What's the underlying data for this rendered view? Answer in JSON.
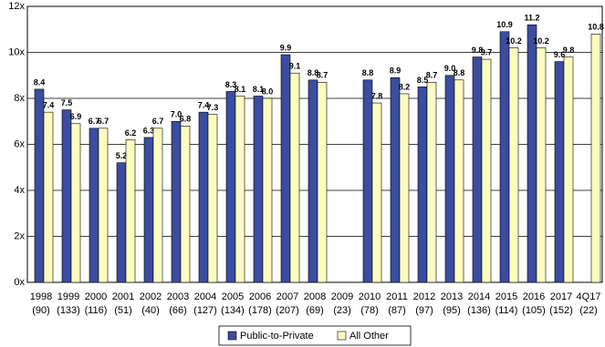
{
  "chart_data": {
    "type": "bar",
    "categories": [
      "1998",
      "1999",
      "2000",
      "2001",
      "2002",
      "2003",
      "2004",
      "2005",
      "2006",
      "2007",
      "2008",
      "2009",
      "2010",
      "2011",
      "2012",
      "2013",
      "2014",
      "2015",
      "2016",
      "2017",
      "4Q17"
    ],
    "category_counts": [
      "(90)",
      "(133)",
      "(116)",
      "(51)",
      "(40)",
      "(66)",
      "(127)",
      "(134)",
      "(178)",
      "(207)",
      "(69)",
      "(23)",
      "(78)",
      "(87)",
      "(97)",
      "(95)",
      "(136)",
      "(114)",
      "(105)",
      "(152)",
      "(22)"
    ],
    "series": [
      {
        "name": "Public-to-Private",
        "color": "#3a4d9f",
        "values": [
          8.4,
          7.5,
          6.7,
          5.2,
          6.3,
          7.0,
          7.4,
          8.3,
          8.1,
          9.9,
          8.8,
          null,
          8.8,
          8.9,
          8.5,
          9.0,
          9.8,
          10.9,
          11.2,
          9.6,
          null
        ],
        "value_labels": [
          "8.4",
          "7.5",
          "6.7",
          "5.2",
          "6.3",
          "7.0",
          "7.4",
          "8.3",
          "8.1",
          "9.9",
          "8.8",
          null,
          "8.8",
          "8.9",
          "8.5",
          "9.0",
          "9.8",
          "10.9",
          "11.2",
          "9.6",
          null
        ]
      },
      {
        "name": "All Other",
        "color": "#fdfdc0",
        "values": [
          7.4,
          6.9,
          6.7,
          6.2,
          6.7,
          6.8,
          7.3,
          8.1,
          8.0,
          9.1,
          8.7,
          null,
          7.8,
          8.2,
          8.7,
          8.8,
          9.7,
          10.2,
          10.2,
          9.8,
          10.8
        ],
        "value_labels": [
          "7.4",
          "6.9",
          "6.7",
          "6.2",
          "6.7",
          "6.8",
          "7.3",
          "8.1",
          "8.0",
          "9.1",
          "8.7",
          null,
          "7.8",
          "8.2",
          "8.7",
          "8.8",
          "9.7",
          "10.2",
          "10.2",
          "9.8",
          "10.8"
        ]
      }
    ],
    "ylim": [
      0,
      12
    ],
    "yticks": [
      {
        "value": 0,
        "label": "0x"
      },
      {
        "value": 2,
        "label": "2x"
      },
      {
        "value": 4,
        "label": "4x"
      },
      {
        "value": 6,
        "label": "6x"
      },
      {
        "value": 8,
        "label": "8x"
      },
      {
        "value": 10,
        "label": "10x"
      },
      {
        "value": 12,
        "label": "12x"
      }
    ],
    "grid": true,
    "legend": "bottom"
  }
}
